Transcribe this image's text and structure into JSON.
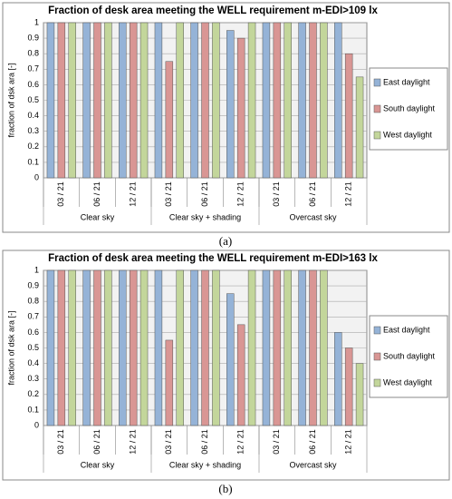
{
  "chart_data": [
    {
      "type": "bar",
      "title": "Fraction of desk area meeting the WELL requirement m-EDI>109 lx",
      "y_label": "fraction of dsk ara [-]",
      "caption": "(a)",
      "categories": [
        "03 / 21",
        "06 / 21",
        "12 / 21",
        "03 / 21",
        "06 / 21",
        "12 / 21",
        "03 / 21",
        "06 / 21",
        "12 / 21"
      ],
      "groups": [
        "Clear sky",
        "Clear sky + shading",
        "Overcast sky"
      ],
      "series": [
        {
          "name": "East daylight",
          "color": "#95b3d7",
          "values": [
            1,
            1,
            1,
            1,
            1,
            0.95,
            1,
            1,
            1
          ]
        },
        {
          "name": "South daylight",
          "color": "#d99694",
          "values": [
            1,
            1,
            1,
            0.75,
            1,
            0.9,
            1,
            1,
            0.8
          ]
        },
        {
          "name": "West daylight",
          "color": "#c3d69b",
          "values": [
            1,
            1,
            1,
            1,
            1,
            1,
            1,
            1,
            0.65
          ]
        }
      ],
      "ylim": [
        0,
        1
      ],
      "yticks": [
        0,
        0.1,
        0.2,
        0.3,
        0.4,
        0.5,
        0.6,
        0.7,
        0.8,
        0.9,
        1
      ],
      "grid": true,
      "legend": "right"
    },
    {
      "type": "bar",
      "title": "Fraction of desk area meeting the WELL requirement m-EDI>163 lx",
      "y_label": "fraction of dsk ara [-]",
      "caption": "(b)",
      "categories": [
        "03 / 21",
        "06 / 21",
        "12 / 21",
        "03 / 21",
        "06 / 21",
        "12 / 21",
        "03 / 21",
        "06 / 21",
        "12 / 21"
      ],
      "groups": [
        "Clear sky",
        "Clear sky + shading",
        "Overcast sky"
      ],
      "series": [
        {
          "name": "East daylight",
          "color": "#95b3d7",
          "values": [
            1,
            1,
            1,
            1,
            1,
            0.85,
            1,
            1,
            0.6
          ]
        },
        {
          "name": "South daylight",
          "color": "#d99694",
          "values": [
            1,
            1,
            1,
            0.55,
            1,
            0.65,
            1,
            1,
            0.5
          ]
        },
        {
          "name": "West daylight",
          "color": "#c3d69b",
          "values": [
            1,
            1,
            1,
            1,
            1,
            1,
            1,
            1,
            0.4
          ]
        }
      ],
      "ylim": [
        0,
        1
      ],
      "yticks": [
        0,
        0.1,
        0.2,
        0.3,
        0.4,
        0.5,
        0.6,
        0.7,
        0.8,
        0.9,
        1
      ],
      "grid": true,
      "legend": "right"
    }
  ]
}
